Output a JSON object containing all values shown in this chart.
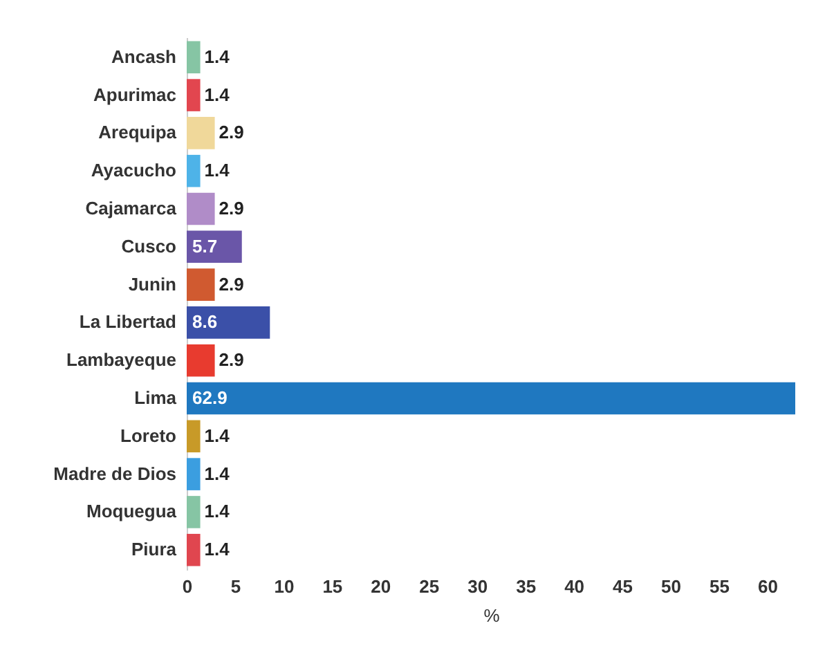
{
  "chart_data": {
    "type": "bar",
    "orientation": "horizontal",
    "xlabel": "%",
    "categories": [
      "Ancash",
      "Apurimac",
      "Arequipa",
      "Ayacucho",
      "Cajamarca",
      "Cusco",
      "Junin",
      "La Libertad",
      "Lambayeque",
      "Lima",
      "Loreto",
      "Madre de Dios",
      "Moquegua",
      "Piura"
    ],
    "values": [
      1.4,
      1.4,
      2.9,
      1.4,
      2.9,
      5.7,
      2.9,
      8.6,
      2.9,
      62.9,
      1.4,
      1.4,
      1.4,
      1.4
    ],
    "colors": [
      "#86c5a4",
      "#e2464f",
      "#f0d89a",
      "#4eb3e8",
      "#b08cc8",
      "#6a56a8",
      "#d05a30",
      "#3b50a8",
      "#e83b2f",
      "#1f78c0",
      "#c89a28",
      "#3b9ee0",
      "#86c5a4",
      "#e0464f"
    ],
    "xlim": [
      0,
      62.9
    ],
    "xticks": [
      0,
      5,
      10,
      15,
      20,
      25,
      30,
      35,
      40,
      45,
      50,
      55,
      60
    ],
    "data_labels": true
  }
}
